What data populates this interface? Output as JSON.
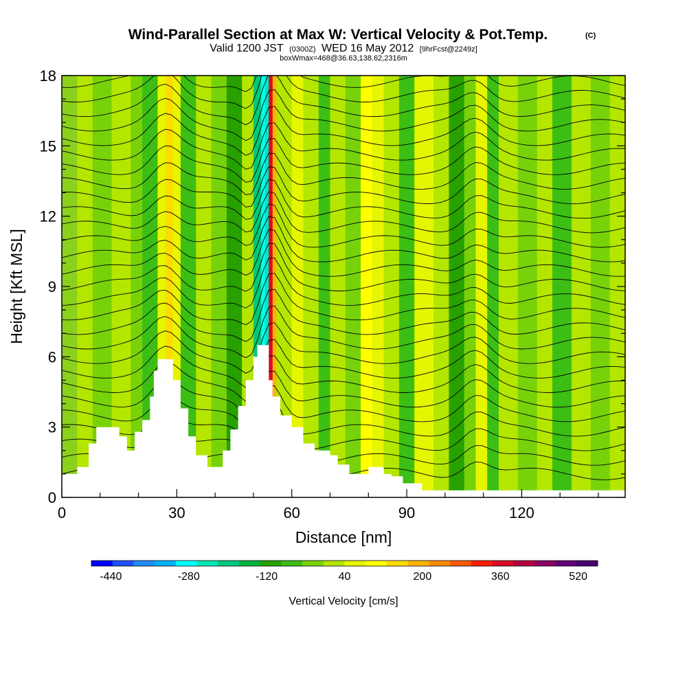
{
  "header": {
    "title": "Wind-Parallel Section at Max W: Vertical Velocity & Pot.Temp.",
    "title_mark": "(C)",
    "subtitle_a": "Valid 1200 JST",
    "subtitle_b": "(0300Z)",
    "subtitle_c": "WED 16 May 2012",
    "subtitle_d": "[9hrFcst@2249z]",
    "subtitle2": "boxWmax=468@36.63,138.62,2316m"
  },
  "chart_data": {
    "type": "heatmap",
    "title": "Wind-Parallel Section at Max W: Vertical Velocity & Pot.Temp.",
    "xlabel": "Distance [nm]",
    "ylabel": "Height [Kft MSL]",
    "xlim": [
      0,
      147
    ],
    "ylim": [
      0,
      18
    ],
    "xticks": [
      0,
      30,
      60,
      90,
      120
    ],
    "yticks": [
      0,
      3,
      6,
      9,
      12,
      15,
      18
    ],
    "grid": false,
    "colorbar": {
      "label": "Vertical Velocity [cm/s]",
      "ticks": [
        -440,
        -280,
        -120,
        40,
        200,
        360,
        520
      ],
      "colors": [
        "#0000ff",
        "#1e50ff",
        "#1e8cff",
        "#00b4ff",
        "#00ffff",
        "#00e6b4",
        "#00c87d",
        "#00b43c",
        "#28a000",
        "#3cbe14",
        "#78d20a",
        "#b4e600",
        "#e6f500",
        "#ffff00",
        "#ffdc00",
        "#ffb400",
        "#ff8c00",
        "#ff5a00",
        "#ff1e00",
        "#dc0a28",
        "#b4003c",
        "#8c0064",
        "#640078",
        "#46006e"
      ]
    },
    "shading": [
      {
        "x": 0,
        "color": "#8cd01e"
      },
      {
        "x": 4,
        "color": "#b4e600"
      },
      {
        "x": 8,
        "color": "#78d20a"
      },
      {
        "x": 13,
        "color": "#b4e600"
      },
      {
        "x": 18,
        "color": "#78d20a"
      },
      {
        "x": 21,
        "color": "#3cbe14"
      },
      {
        "x": 25,
        "color": "#e6f500"
      },
      {
        "x": 27,
        "color": "#ffdc00"
      },
      {
        "x": 29,
        "color": "#e6f500"
      },
      {
        "x": 31,
        "color": "#3cbe14"
      },
      {
        "x": 35,
        "color": "#b4e600"
      },
      {
        "x": 39,
        "color": "#78d20a"
      },
      {
        "x": 43,
        "color": "#28a000"
      },
      {
        "x": 47,
        "color": "#b4e600"
      },
      {
        "x": 50,
        "color": "#00c87d"
      },
      {
        "x": 52,
        "color": "#00ffff"
      },
      {
        "x": 53,
        "color": "#00e6b4"
      },
      {
        "x": 54,
        "color": "#dc0a28"
      },
      {
        "x": 55,
        "color": "#ffb400"
      },
      {
        "x": 56,
        "color": "#b4e600"
      },
      {
        "x": 60,
        "color": "#e6f500"
      },
      {
        "x": 63,
        "color": "#b4e600"
      },
      {
        "x": 67,
        "color": "#3cbe14"
      },
      {
        "x": 70,
        "color": "#b4e600"
      },
      {
        "x": 74,
        "color": "#78d20a"
      },
      {
        "x": 78,
        "color": "#ffff00"
      },
      {
        "x": 81,
        "color": "#e6f500"
      },
      {
        "x": 84,
        "color": "#b4e600"
      },
      {
        "x": 88,
        "color": "#3cbe14"
      },
      {
        "x": 92,
        "color": "#e6f500"
      },
      {
        "x": 97,
        "color": "#b4e600"
      },
      {
        "x": 101,
        "color": "#28a000"
      },
      {
        "x": 105,
        "color": "#78d20a"
      },
      {
        "x": 108,
        "color": "#e6f500"
      },
      {
        "x": 111,
        "color": "#3cbe14"
      },
      {
        "x": 114,
        "color": "#b4e600"
      },
      {
        "x": 119,
        "color": "#78d20a"
      },
      {
        "x": 124,
        "color": "#b4e600"
      },
      {
        "x": 128,
        "color": "#3cbe14"
      },
      {
        "x": 133,
        "color": "#b4e600"
      },
      {
        "x": 138,
        "color": "#78d20a"
      },
      {
        "x": 143,
        "color": "#b4e600"
      }
    ],
    "terrain_kft": [
      [
        0,
        1.0
      ],
      [
        4,
        1.3
      ],
      [
        7,
        2.3
      ],
      [
        9,
        3.0
      ],
      [
        13,
        3.0
      ],
      [
        15,
        2.6
      ],
      [
        16,
        2.6
      ],
      [
        17,
        2.0
      ],
      [
        18,
        2.0
      ],
      [
        19,
        2.8
      ],
      [
        21,
        3.3
      ],
      [
        23,
        4.3
      ],
      [
        24,
        5.4
      ],
      [
        25,
        5.9
      ],
      [
        27,
        5.9
      ],
      [
        29,
        5.0
      ],
      [
        31,
        3.8
      ],
      [
        33,
        2.6
      ],
      [
        35,
        1.8
      ],
      [
        38,
        1.3
      ],
      [
        40,
        1.3
      ],
      [
        42,
        2.0
      ],
      [
        44,
        2.9
      ],
      [
        46,
        3.9
      ],
      [
        48,
        5.0
      ],
      [
        50,
        6.0
      ],
      [
        51,
        6.5
      ],
      [
        53,
        6.5
      ],
      [
        54,
        5.0
      ],
      [
        55,
        4.3
      ],
      [
        57,
        3.5
      ],
      [
        60,
        3.0
      ],
      [
        63,
        2.3
      ],
      [
        66,
        2.0
      ],
      [
        70,
        1.8
      ],
      [
        72,
        1.4
      ],
      [
        75,
        1.0
      ],
      [
        78,
        1.0
      ],
      [
        80,
        1.3
      ],
      [
        82,
        1.3
      ],
      [
        84,
        1.0
      ],
      [
        86,
        0.9
      ],
      [
        89,
        0.6
      ],
      [
        92,
        0.6
      ],
      [
        94,
        0.3
      ],
      [
        147,
        0.3
      ]
    ]
  }
}
